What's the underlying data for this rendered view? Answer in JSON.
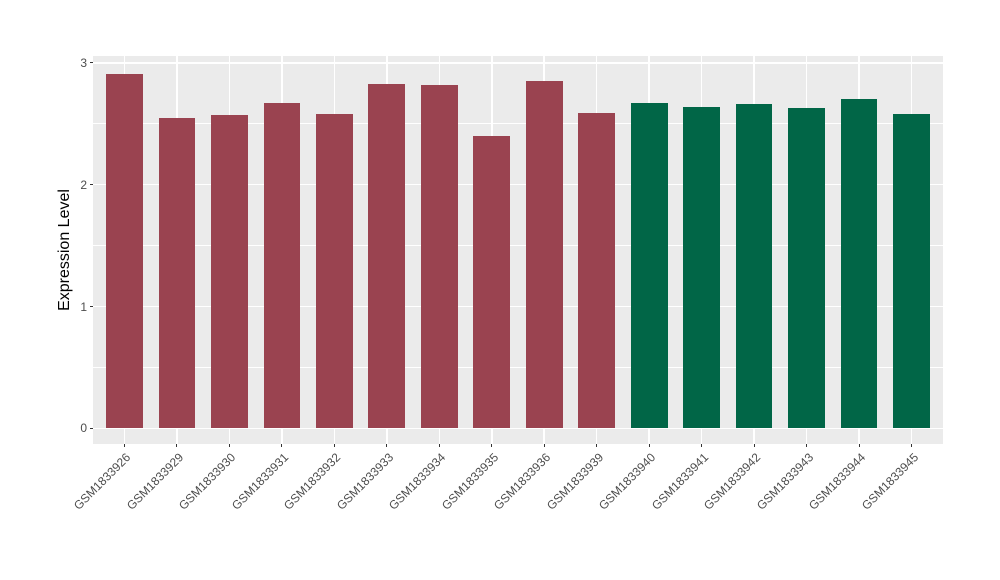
{
  "chart_data": {
    "type": "bar",
    "title": "",
    "xlabel": "",
    "ylabel": "Expression Level",
    "ylim": [
      0,
      3.06
    ],
    "yticks": [
      0,
      1,
      2,
      3
    ],
    "yticks_minor": [
      0.5,
      1.5,
      2.5
    ],
    "grid": "white major and minor horizontal lines, white vertical lines at each category, on grey panel",
    "legend_position": "none",
    "categories": [
      "GSM1833926",
      "GSM1833929",
      "GSM1833930",
      "GSM1833931",
      "GSM1833932",
      "GSM1833933",
      "GSM1833934",
      "GSM1833935",
      "GSM1833936",
      "GSM1833939",
      "GSM1833940",
      "GSM1833941",
      "GSM1833942",
      "GSM1833943",
      "GSM1833944",
      "GSM1833945"
    ],
    "values": [
      2.91,
      2.55,
      2.57,
      2.67,
      2.58,
      2.83,
      2.82,
      2.4,
      2.85,
      2.59,
      2.67,
      2.64,
      2.66,
      2.63,
      2.7,
      2.58
    ],
    "bar_colors": [
      "#9A4350",
      "#9A4350",
      "#9A4350",
      "#9A4350",
      "#9A4350",
      "#9A4350",
      "#9A4350",
      "#9A4350",
      "#9A4350",
      "#9A4350",
      "#016647",
      "#016647",
      "#016647",
      "#016647",
      "#016647",
      "#016647"
    ],
    "group_colors": {
      "first_ten_samples": "#9A4350",
      "last_six_samples": "#016647"
    },
    "panel_background": "#EBEBEB",
    "figure_background": "#FFFFFF",
    "gridline_color": "#FFFFFF",
    "tick_mark_color": "#333333",
    "axis_text_color": "#4D4D4D",
    "axis_title_color": "#000000"
  }
}
